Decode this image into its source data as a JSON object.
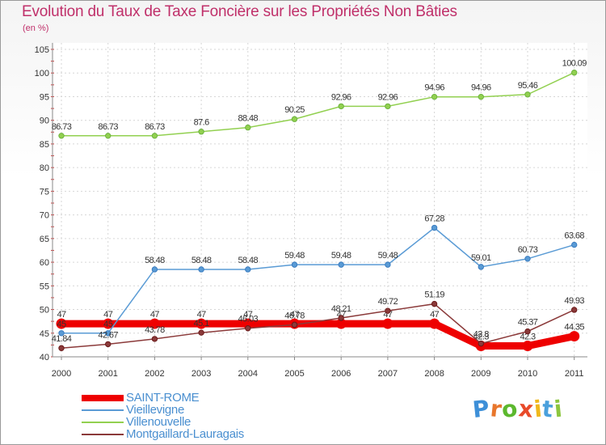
{
  "title": "Evolution du Taux de Taxe Foncière sur les Propriétés Non Bâties",
  "unit_label": "(en %)",
  "logo": {
    "letters": [
      "P",
      "r",
      "o",
      "x",
      "i",
      "t",
      "i"
    ],
    "colors": [
      "#3d8fd8",
      "#e8762c",
      "#5cb82e",
      "#e84a2a",
      "#f0b81c",
      "#4aa0dc",
      "#8cc63f"
    ]
  },
  "chart_data": {
    "type": "line",
    "title": "Evolution du Taux de Taxe Foncière sur les Propriétés Non Bâties",
    "ylabel": "(en %)",
    "xlabel": "",
    "categories": [
      "2000",
      "2001",
      "2002",
      "2003",
      "2004",
      "2005",
      "2006",
      "2007",
      "2008",
      "2009",
      "2010",
      "2011"
    ],
    "ylim": [
      40,
      105
    ],
    "yticks": [
      "40",
      "45",
      "50",
      "55",
      "60",
      "65",
      "70",
      "75",
      "80",
      "85",
      "90",
      "95",
      "100",
      "105"
    ],
    "grid": true,
    "series": [
      {
        "name": "SAINT-ROME",
        "color": "#ee0000",
        "thick": true,
        "values": [
          47,
          47,
          47,
          47,
          47,
          47,
          47,
          47,
          47,
          42.3,
          42.3,
          44.35
        ],
        "labels": [
          "47",
          "47",
          "47",
          "47",
          "47",
          "47",
          "47",
          "47",
          "47",
          "42.3",
          "42.3",
          "44.35"
        ]
      },
      {
        "name": "Vieillevigne",
        "color": "#5a9bd5",
        "marker": "#3a7cc0",
        "values": [
          45,
          45,
          58.48,
          58.48,
          58.48,
          59.48,
          59.48,
          59.48,
          67.28,
          59.01,
          60.73,
          63.68
        ],
        "labels": [
          "45",
          "45",
          "58.48",
          "58.48",
          "58.48",
          "59.48",
          "59.48",
          "59.48",
          "67.28",
          "59.01",
          "60.73",
          "63.68"
        ]
      },
      {
        "name": "Villenouvelle",
        "color": "#92d050",
        "marker": "#6cb33e",
        "values": [
          86.73,
          86.73,
          86.73,
          87.6,
          88.48,
          90.25,
          92.96,
          92.96,
          94.96,
          94.96,
          95.46,
          100.09
        ],
        "labels": [
          "86.73",
          "86.73",
          "86.73",
          "87.6",
          "88.48",
          "90.25",
          "92.96",
          "92.96",
          "94.96",
          "94.96",
          "95.46",
          "100.09"
        ]
      },
      {
        "name": "Montgaillard-Lauragais",
        "color": "#8b3a3a",
        "marker": "#6b1a1a",
        "values": [
          41.84,
          42.67,
          43.78,
          45.1,
          46.03,
          46.78,
          48.21,
          49.72,
          51.19,
          42.8,
          45.37,
          49.93
        ],
        "labels": [
          "41.84",
          "42.67",
          "43.78",
          "45.1",
          "46.03",
          "46.78",
          "48.21",
          "49.72",
          "51.19",
          "42.8",
          "45.37",
          "49.93"
        ]
      }
    ]
  }
}
